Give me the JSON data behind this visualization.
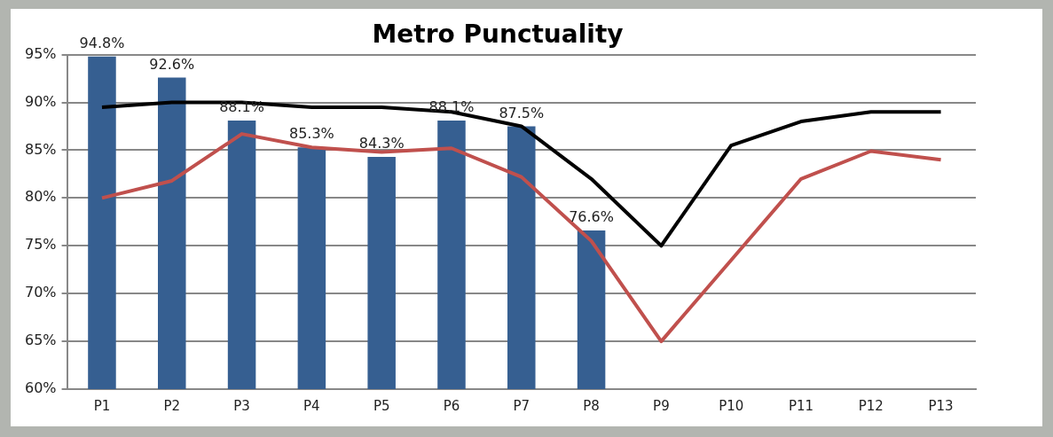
{
  "chart_data": {
    "type": "bar",
    "title": "Metro Punctuality",
    "categories": [
      "P1",
      "P2",
      "P3",
      "P4",
      "P5",
      "P6",
      "P7",
      "P8",
      "P9",
      "P10",
      "P11",
      "P12",
      "P13"
    ],
    "series": [
      {
        "color": "#365f91",
        "values": [
          94.8,
          92.6,
          88.1,
          85.3,
          84.3,
          88.1,
          87.5,
          76.6,
          null,
          null,
          null,
          null,
          null
        ],
        "value_labels": [
          "94.8%",
          "92.6%",
          "88.1%",
          "85.3%",
          "84.3%",
          "88.1%",
          "87.5%",
          "76.6%",
          null,
          null,
          null,
          null,
          null
        ]
      },
      {
        "type": "line",
        "color": "#000000",
        "values": [
          89.5,
          90,
          90,
          89.5,
          89.5,
          89,
          87.5,
          82,
          75,
          85.5,
          88,
          89,
          89
        ]
      },
      {
        "type": "line",
        "color": "#c0504d",
        "values": [
          80,
          81.8,
          86.7,
          85.3,
          84.8,
          85.2,
          82.2,
          75.5,
          65,
          73.5,
          82,
          84.9,
          84
        ]
      }
    ],
    "ylim": [
      60,
      95
    ],
    "yticks": [
      {
        "value": 60,
        "label": "60%"
      },
      {
        "value": 65,
        "label": "65%"
      },
      {
        "value": 70,
        "label": "70%"
      },
      {
        "value": 75,
        "label": "75%"
      },
      {
        "value": 80,
        "label": "80%"
      },
      {
        "value": 85,
        "label": "85%"
      },
      {
        "value": 90,
        "label": "90%"
      },
      {
        "value": 95,
        "label": "95%"
      }
    ],
    "grid": "y",
    "marker": "none",
    "line_style": "solid"
  }
}
